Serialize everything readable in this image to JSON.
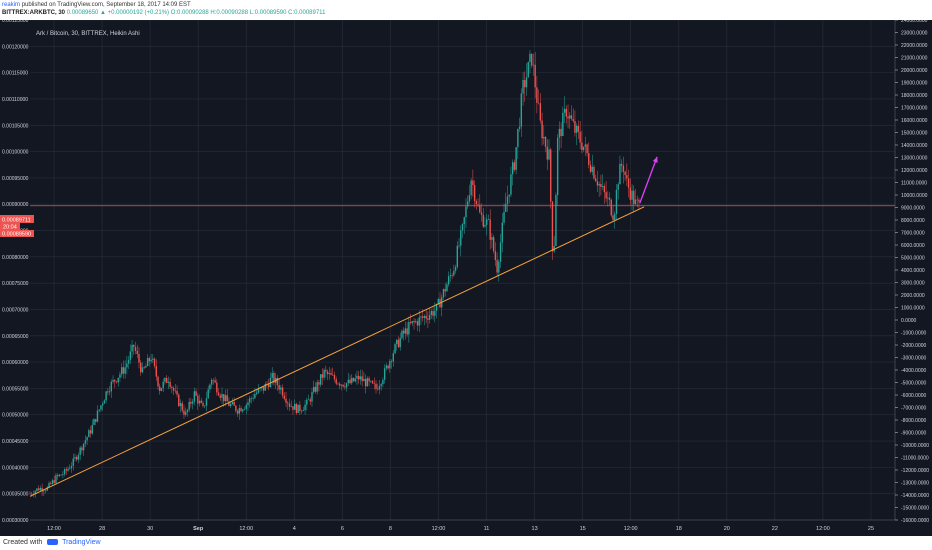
{
  "header": {
    "author": "reakim",
    "published": "published on TradingView.com, September 18, 2017 14:09 EST",
    "symbol": "BITTREX:ARKBTC, 30",
    "ohlc": "0.00089650 ▲ +0.00000192 (+0.21%) O:0.00090288 H:0.00090288 L:0.00089590 C:0.00089711"
  },
  "footer": {
    "created_with": "Created with",
    "brand": "TradingView"
  },
  "chart_data": {
    "type": "line",
    "title": "Ark / Bitcoin, 30, BITTREX, Heikin Ashi",
    "x_ticks": [
      "12:00",
      "28",
      "30",
      "Sep",
      "12:00",
      "4",
      "6",
      "8",
      "12:00",
      "11",
      "13",
      "15",
      "12:00",
      "18",
      "20",
      "22",
      "12:00",
      "25"
    ],
    "left_axis": {
      "ticks": [
        "0.00125000",
        "0.00120000",
        "0.00115000",
        "0.00110000",
        "0.00105000",
        "0.00100000",
        "0.00095000",
        "0.00090000",
        "0.00085000",
        "0.00080000",
        "0.00075000",
        "0.00070000",
        "0.00065000",
        "0.00060000",
        "0.00055000",
        "0.00050000",
        "0.00045000",
        "0.00040000",
        "0.00035000",
        "0.00030000"
      ],
      "ylim": [
        0.0003,
        0.00125
      ]
    },
    "right_axis": {
      "ticks": [
        "24000.0000",
        "23000.0000",
        "22000.0000",
        "21000.0000",
        "20000.0000",
        "19000.0000",
        "18000.0000",
        "17000.0000",
        "16000.0000",
        "15000.0000",
        "14000.0000",
        "13000.0000",
        "12000.0000",
        "11000.0000",
        "10000.0000",
        "9000.0000",
        "8000.0000",
        "7000.0000",
        "6000.0000",
        "5000.0000",
        "4000.0000",
        "3000.0000",
        "2000.0000",
        "1000.0000",
        "0.0000",
        "-1000.0000",
        "-2000.0000",
        "-3000.0000",
        "-4000.0000",
        "-5000.0000",
        "-6000.0000",
        "-7000.0000",
        "-8000.0000",
        "-9000.0000",
        "-10000.0000",
        "-11000.0000",
        "-12000.0000",
        "-13000.0000",
        "-14000.0000",
        "-15000.0000",
        "-16000.0000"
      ],
      "ylim": [
        -16000,
        24000
      ]
    },
    "price_labels": {
      "last": "0.00089711",
      "countdown": "20:04",
      "low": "0.00089590"
    },
    "trendline": {
      "from": [
        0,
        0.000345
      ],
      "to": [
        142,
        0.000895
      ]
    },
    "arrow": {
      "from": [
        141,
        0.000902
      ],
      "to": [
        145,
        0.00099
      ]
    },
    "price_path": [
      [
        0,
        0.00035
      ],
      [
        2,
        0.00036
      ],
      [
        4,
        0.00036
      ],
      [
        6,
        0.00038
      ],
      [
        8,
        0.00039
      ],
      [
        10,
        0.00041
      ],
      [
        12,
        0.00044
      ],
      [
        14,
        0.00047
      ],
      [
        16,
        0.00051
      ],
      [
        18,
        0.00055
      ],
      [
        20,
        0.00057
      ],
      [
        22,
        0.00059
      ],
      [
        24,
        0.00063
      ],
      [
        26,
        0.00058
      ],
      [
        28,
        0.00061
      ],
      [
        30,
        0.00055
      ],
      [
        32,
        0.00057
      ],
      [
        34,
        0.00053
      ],
      [
        36,
        0.0005
      ],
      [
        38,
        0.00054
      ],
      [
        40,
        0.00051
      ],
      [
        42,
        0.00057
      ],
      [
        44,
        0.00054
      ],
      [
        46,
        0.00052
      ],
      [
        48,
        0.00051
      ],
      [
        50,
        0.00052
      ],
      [
        52,
        0.00054
      ],
      [
        54,
        0.00055
      ],
      [
        56,
        0.00057
      ],
      [
        58,
        0.00055
      ],
      [
        60,
        0.00052
      ],
      [
        62,
        0.00051
      ],
      [
        64,
        0.00052
      ],
      [
        66,
        0.00055
      ],
      [
        68,
        0.00058
      ],
      [
        70,
        0.00057
      ],
      [
        72,
        0.00056
      ],
      [
        74,
        0.00056
      ],
      [
        76,
        0.00057
      ],
      [
        78,
        0.00056
      ],
      [
        80,
        0.00055
      ],
      [
        82,
        0.00058
      ],
      [
        84,
        0.00062
      ],
      [
        86,
        0.00065
      ],
      [
        88,
        0.00067
      ],
      [
        90,
        0.00068
      ],
      [
        92,
        0.00069
      ],
      [
        94,
        0.0007
      ],
      [
        96,
        0.00074
      ],
      [
        98,
        0.00078
      ],
      [
        100,
        0.00085
      ],
      [
        102,
        0.00095
      ],
      [
        104,
        0.00088
      ],
      [
        106,
        0.00086
      ],
      [
        108,
        0.00078
      ],
      [
        110,
        0.0009
      ],
      [
        112,
        0.00098
      ],
      [
        114,
        0.00112
      ],
      [
        116,
        0.00118
      ],
      [
        118,
        0.00105
      ],
      [
        120,
        0.00099
      ],
      [
        121,
        0.00078
      ],
      [
        122,
        0.00102
      ],
      [
        124,
        0.00108
      ],
      [
        126,
        0.00104
      ],
      [
        128,
        0.00101
      ],
      [
        130,
        0.00097
      ],
      [
        132,
        0.00093
      ],
      [
        134,
        0.0009
      ],
      [
        135,
        0.00088
      ],
      [
        136,
        0.00095
      ],
      [
        137,
        0.00098
      ],
      [
        138,
        0.00094
      ],
      [
        139,
        0.00092
      ],
      [
        140,
        0.0009
      ],
      [
        141,
        0.000897
      ]
    ],
    "xlim": [
      0,
      200
    ],
    "grid": true
  },
  "colors": {
    "background": "#131722",
    "grid": "#2a2e39",
    "axis_text": "#d1d4dc",
    "candle_up": "#26a69a",
    "candle_down": "#ef5350",
    "trendline": "#f7a33b",
    "arrow": "#e040fb",
    "price_line": "#ef5350"
  }
}
